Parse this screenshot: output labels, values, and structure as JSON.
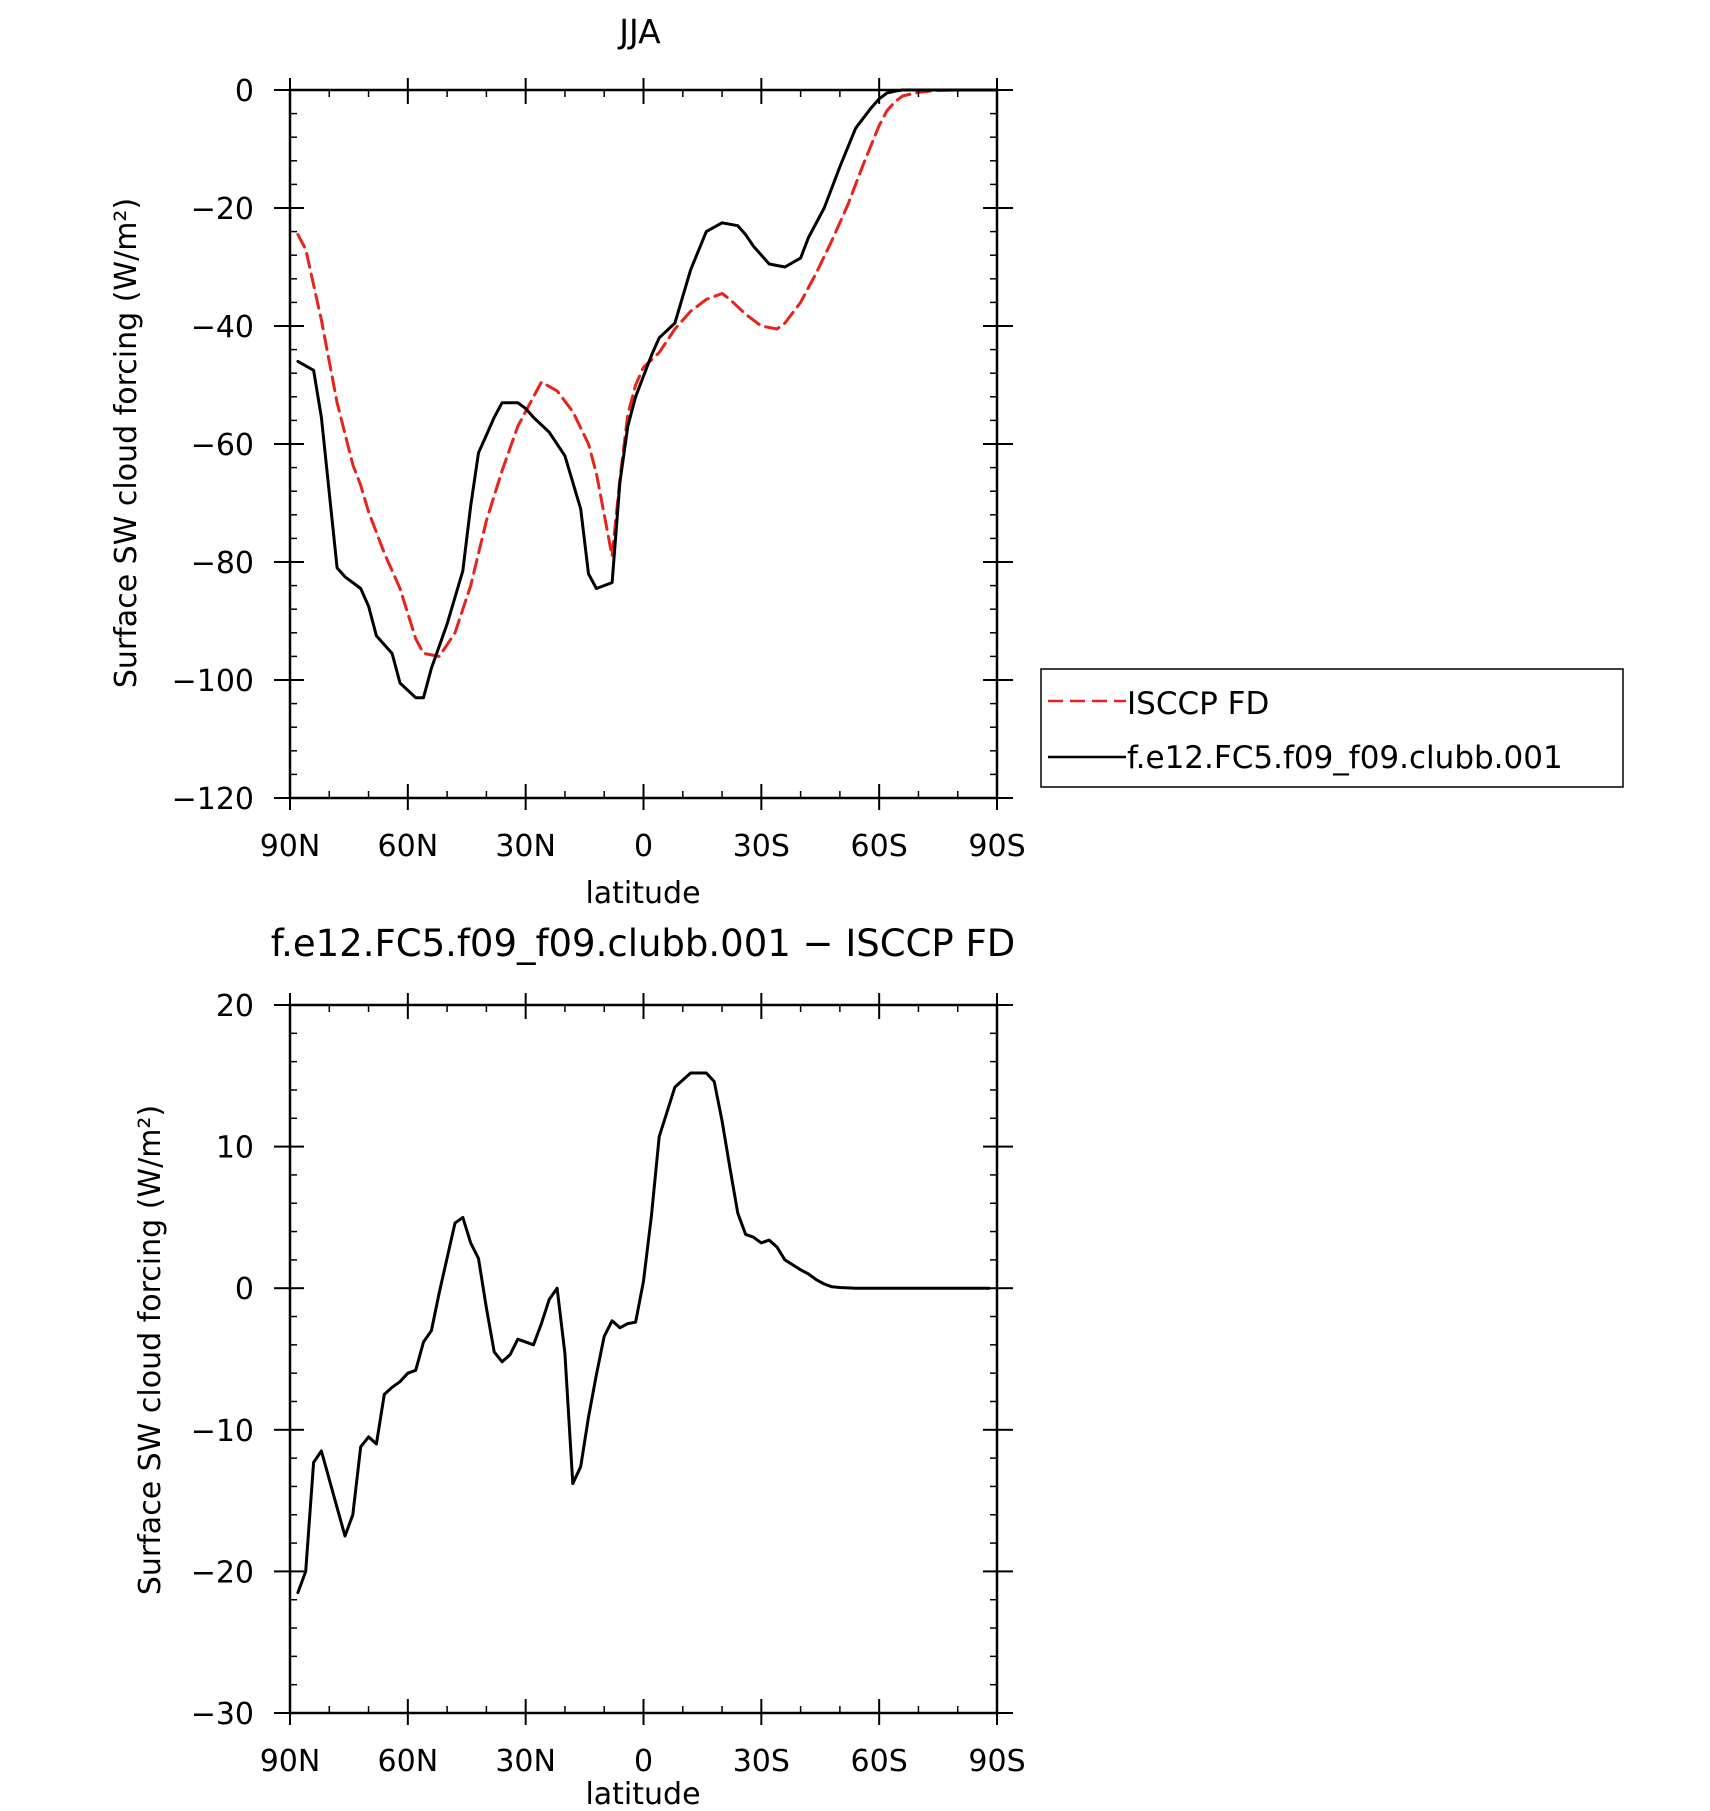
{
  "chart_data": [
    {
      "type": "line",
      "title": "JJA",
      "xlabel": "latitude",
      "ylabel": "Surface SW cloud forcing (W/m²)",
      "xlim": [
        90,
        -90
      ],
      "ylim": [
        -120,
        0
      ],
      "x_ticks": [
        90,
        60,
        30,
        0,
        -30,
        -60,
        -90
      ],
      "x_tick_labels": [
        "90N",
        "60N",
        "30N",
        "0",
        "30S",
        "60S",
        "90S"
      ],
      "y_ticks": [
        0,
        -20,
        -40,
        -60,
        -80,
        -100,
        -120
      ],
      "y_tick_labels": [
        "0",
        "−20",
        "−40",
        "−60",
        "−80",
        "−100",
        "−120"
      ],
      "legend": {
        "placement": "right",
        "entries": [
          "ISCCP FD",
          "f.e12.FC5.f09_f09.clubb.001"
        ]
      },
      "series": [
        {
          "name": "ISCCP FD",
          "color": "#e8231c",
          "style": "dashed",
          "x": [
            88,
            86,
            82,
            78,
            74,
            72,
            70,
            66,
            62,
            58,
            56,
            52,
            48,
            44,
            40,
            36,
            32,
            28,
            26,
            22,
            18,
            14,
            12,
            8,
            6,
            4,
            2,
            0,
            -4,
            -8,
            -12,
            -16,
            -20,
            -22,
            -26,
            -30,
            -34,
            -36,
            -40,
            -44,
            -48,
            -52,
            -56,
            -60,
            -62,
            -64,
            -66,
            -70,
            -74,
            -80,
            -86,
            -90
          ],
          "values": [
            -24.5,
            -27,
            -39,
            -53,
            -63.5,
            -67,
            -71.5,
            -78.5,
            -84.5,
            -93,
            -95.5,
            -96,
            -92,
            -84,
            -73,
            -64.5,
            -57,
            -52,
            -49.5,
            -51,
            -54.5,
            -60,
            -65,
            -79,
            -66,
            -55,
            -50,
            -47,
            -44.5,
            -40.5,
            -37.5,
            -35.5,
            -34.5,
            -35.5,
            -38,
            -40,
            -40.5,
            -39.5,
            -36,
            -31,
            -25.5,
            -19.5,
            -12.5,
            -6,
            -3.5,
            -2,
            -1,
            -0.4,
            -0.1,
            0,
            0,
            0
          ]
        },
        {
          "name": "f.e12.FC5.f09_f09.clubb.001",
          "color": "#000000",
          "style": "solid",
          "x": [
            88,
            84,
            82,
            78,
            76,
            72,
            70,
            68,
            64,
            62,
            58,
            56,
            54,
            50,
            46,
            44,
            42,
            40,
            38,
            36,
            32,
            30,
            28,
            24,
            20,
            16,
            14,
            12,
            8,
            6,
            4,
            2,
            0,
            -2,
            -4,
            -8,
            -12,
            -16,
            -20,
            -24,
            -26,
            -28,
            -32,
            -36,
            -40,
            -42,
            -46,
            -50,
            -54,
            -58,
            -60,
            -62,
            -64,
            -66,
            -68,
            -70,
            -74,
            -80,
            -86,
            -90
          ],
          "values": [
            -46,
            -47.5,
            -55.5,
            -81,
            -82.5,
            -84.5,
            -87.5,
            -92.5,
            -95.5,
            -100.5,
            -103,
            -103,
            -98,
            -90.5,
            -81.5,
            -70.5,
            -61.5,
            -58.5,
            -55.5,
            -53,
            -53,
            -54,
            -55.5,
            -58,
            -62,
            -71,
            -82,
            -84.5,
            -83.5,
            -66.5,
            -57,
            -52,
            -48.5,
            -45,
            -42,
            -39.5,
            -30.5,
            -24,
            -22.5,
            -23,
            -24.5,
            -26.5,
            -29.5,
            -30,
            -28.5,
            -25,
            -20,
            -13,
            -6.5,
            -3,
            -1.5,
            -0.5,
            -0.2,
            0,
            0,
            0,
            0,
            0,
            0,
            0
          ]
        }
      ]
    },
    {
      "type": "line",
      "title": "f.e12.FC5.f09_f09.clubb.001 − ISCCP FD",
      "xlabel": "latitude",
      "ylabel": "Surface SW cloud forcing (W/m²)",
      "xlim": [
        90,
        -90
      ],
      "ylim": [
        -30,
        20
      ],
      "x_ticks": [
        90,
        60,
        30,
        0,
        -30,
        -60,
        -90
      ],
      "x_tick_labels": [
        "90N",
        "60N",
        "30N",
        "0",
        "30S",
        "60S",
        "90S"
      ],
      "y_ticks": [
        20,
        10,
        0,
        -10,
        -20,
        -30
      ],
      "y_tick_labels": [
        "20",
        "10",
        "0",
        "−10",
        "−20",
        "−30"
      ],
      "series": [
        {
          "color": "#000000",
          "style": "solid",
          "x": [
            88,
            86,
            84,
            82,
            78,
            76,
            74,
            72,
            70,
            68,
            66,
            64,
            62,
            60,
            58,
            56,
            54,
            52,
            48,
            46,
            44,
            42,
            40,
            38,
            36,
            34,
            32,
            28,
            26,
            24,
            22,
            20,
            18,
            16,
            14,
            12,
            10,
            8,
            6,
            4,
            2,
            0,
            -2,
            -4,
            -8,
            -12,
            -16,
            -18,
            -20,
            -22,
            -24,
            -26,
            -28,
            -30,
            -32,
            -34,
            -36,
            -40,
            -42,
            -44,
            -46,
            -48,
            -50,
            -52,
            -54,
            -56,
            -58,
            -60,
            -62,
            -64,
            -66,
            -70,
            -74,
            -80,
            -86,
            -88
          ],
          "values": [
            -21.5,
            -20,
            -12.3,
            -11.5,
            -15.5,
            -17.5,
            -16,
            -11.2,
            -10.5,
            -11,
            -7.5,
            -7,
            -6.6,
            -6,
            -5.8,
            -3.8,
            -3,
            -0.3,
            4.6,
            5,
            3.2,
            2.1,
            -1.4,
            -4.5,
            -5.2,
            -4.7,
            -3.6,
            -4,
            -2.5,
            -0.8,
            0,
            -4.6,
            -13.8,
            -12.6,
            -9.1,
            -6.1,
            -3.4,
            -2.3,
            -2.8,
            -2.5,
            -2.4,
            0.5,
            5.1,
            10.7,
            14.2,
            15.2,
            15.2,
            14.6,
            11.8,
            8.5,
            5.3,
            3.8,
            3.6,
            3.2,
            3.4,
            2.9,
            2,
            1.3,
            1,
            0.6,
            0.3,
            0.1,
            0.05,
            0.02,
            0,
            0,
            0,
            0,
            0,
            0,
            0,
            0,
            0,
            0,
            0,
            0
          ]
        }
      ]
    }
  ]
}
